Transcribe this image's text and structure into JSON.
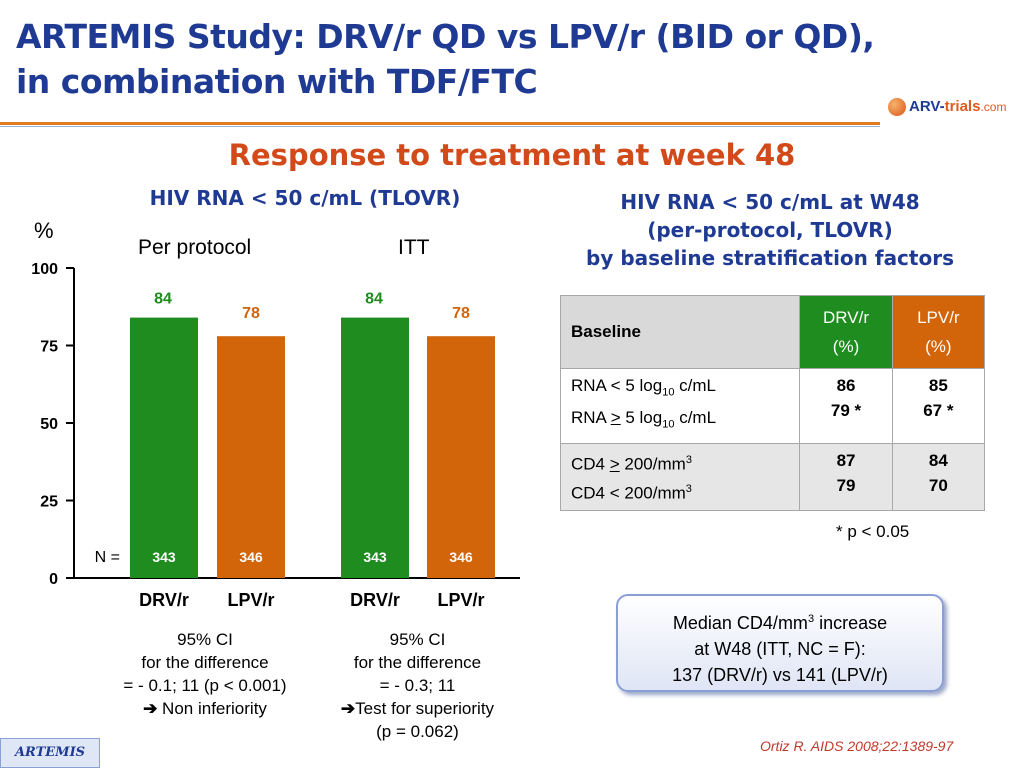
{
  "title_line1": "ARTEMIS Study: DRV/r QD vs LPV/r (BID or QD),",
  "title_line2": "in combination with TDF/FTC",
  "logo": {
    "prefix": "ARV-",
    "name": "trials",
    "domain": ".com"
  },
  "subtitle": "Response to treatment at week 48",
  "left_heading": "HIV RNA < 50 c/mL (TLOVR)",
  "right_heading": [
    "HIV RNA < 50 c/mL at W48",
    "(per-protocol, TLOVR)",
    "by baseline stratification factors"
  ],
  "chart_data": {
    "type": "bar",
    "ylabel": "%",
    "ylim": [
      0,
      100
    ],
    "yticks": [
      "0",
      "25",
      "50",
      "75",
      "100"
    ],
    "groups": [
      "Per protocol",
      "ITT"
    ],
    "categories": [
      "DRV/r",
      "LPV/r",
      "DRV/r",
      "LPV/r"
    ],
    "values": [
      84,
      78,
      84,
      78
    ],
    "value_labels": [
      "84",
      "78",
      "84",
      "78"
    ],
    "n_label": "N =",
    "n_values": [
      "343",
      "346",
      "343",
      "346"
    ],
    "colors": {
      "drv": "#1e8c1e",
      "lpv": "#d2640a"
    }
  },
  "ci_per_protocol": [
    "95% CI",
    "for the difference",
    "= - 0.1; 11 (p < 0.001)",
    "Non inferiority"
  ],
  "ci_itt": [
    "95% CI",
    "for the difference",
    "= - 0.3; 11",
    "Test for superiority",
    "(p = 0.062)"
  ],
  "table": {
    "header": {
      "baseline": "Baseline",
      "drv": [
        "DRV/r",
        "(%)"
      ],
      "lpv": [
        "LPV/r",
        "(%)"
      ]
    },
    "rows": [
      {
        "labels": [
          "RNA < 5 log",
          "RNA > 5 log"
        ],
        "sub": "10",
        "unit": " c/mL",
        "drv": [
          "86",
          "79 *"
        ],
        "lpv": [
          "85",
          "67 *"
        ]
      },
      {
        "labels": [
          "CD4 > 200/mm",
          "CD4 < 200/mm"
        ],
        "sup": "3",
        "drv": [
          "87",
          "79"
        ],
        "lpv": [
          "84",
          "70"
        ]
      }
    ]
  },
  "p_note": "* p < 0.05",
  "median_box": [
    "Median CD4/mm",
    "3",
    " increase",
    "at W48 (ITT, NC = F):",
    "137 (DRV/r) vs 141 (LPV/r)"
  ],
  "footer_badge": "ARTEMIS",
  "reference": "Ortiz R. AIDS 2008;22:1389-97"
}
